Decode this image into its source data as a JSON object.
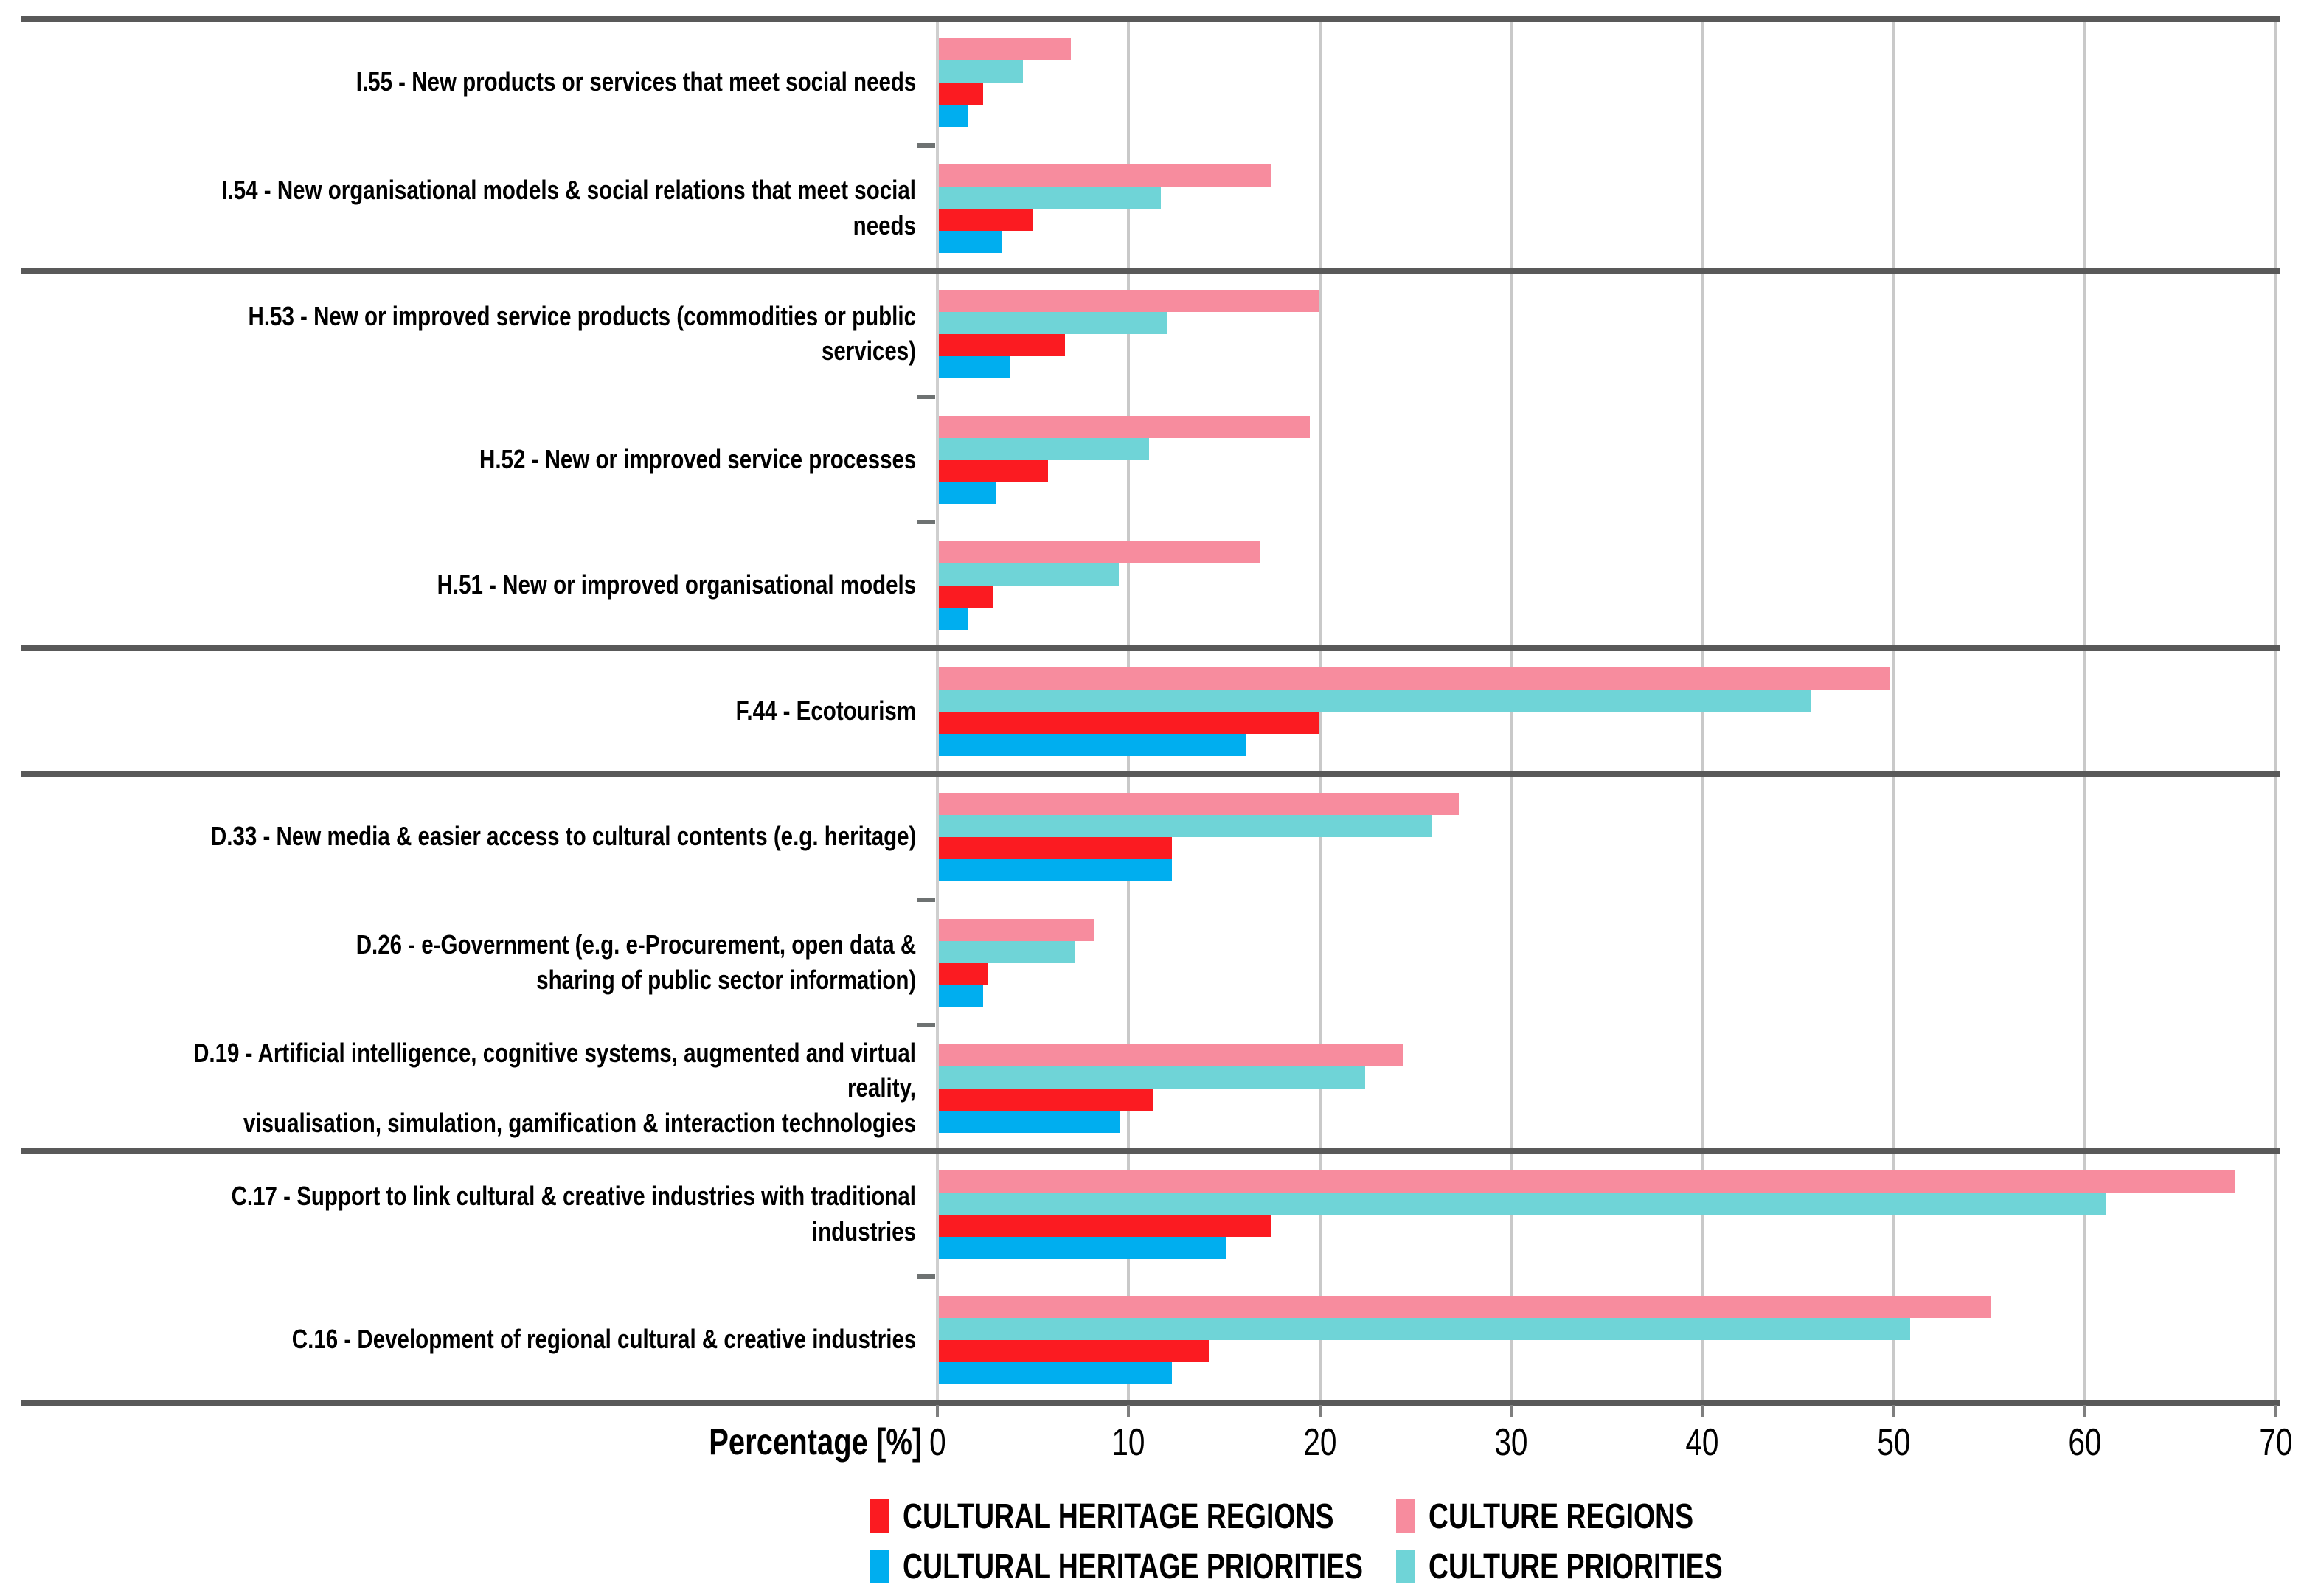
{
  "chart_data": {
    "type": "bar",
    "orientation": "horizontal",
    "title": "",
    "xlabel": "Percentage [%]",
    "xlim": [
      0,
      70
    ],
    "xticks": [
      0,
      10,
      20,
      30,
      40,
      50,
      60,
      70
    ],
    "grid": true,
    "legend_position": "bottom",
    "bar_order_top_to_bottom": [
      "culture_regions",
      "culture_priorities",
      "cultural_heritage_regions",
      "cultural_heritage_priorities"
    ],
    "series": [
      {
        "key": "culture_regions",
        "name": "CULTURE REGIONS",
        "color": "#F78C9E"
      },
      {
        "key": "culture_priorities",
        "name": "CULTURE PRIORITIES",
        "color": "#6FD4D7"
      },
      {
        "key": "cultural_heritage_regions",
        "name": "CULTURAL HERITAGE REGIONS",
        "color": "#FB1B21"
      },
      {
        "key": "cultural_heritage_priorities",
        "name": "CULTURAL HERITAGE PRIORITIES",
        "color": "#00AEEF"
      }
    ],
    "rows": [
      {
        "section": "I",
        "label": "I.55 - New products or services that meet social needs",
        "values": {
          "culture_regions": 6.9,
          "culture_priorities": 4.4,
          "cultural_heritage_regions": 2.3,
          "cultural_heritage_priorities": 1.5
        }
      },
      {
        "section": "I",
        "label": "I.54 - New organisational models & social relations that meet social needs",
        "values": {
          "culture_regions": 17.4,
          "culture_priorities": 11.6,
          "cultural_heritage_regions": 4.9,
          "cultural_heritage_priorities": 3.3
        }
      },
      {
        "section": "H",
        "label": "H.53 - New or improved service products (commodities or public services)",
        "values": {
          "culture_regions": 19.9,
          "culture_priorities": 11.9,
          "cultural_heritage_regions": 6.6,
          "cultural_heritage_priorities": 3.7
        }
      },
      {
        "section": "H",
        "label": "H.52 - New or improved service processes",
        "values": {
          "culture_regions": 19.4,
          "culture_priorities": 11.0,
          "cultural_heritage_regions": 5.7,
          "cultural_heritage_priorities": 3.0
        }
      },
      {
        "section": "H",
        "label": "H.51 - New or improved organisational models",
        "values": {
          "culture_regions": 16.8,
          "culture_priorities": 9.4,
          "cultural_heritage_regions": 2.8,
          "cultural_heritage_priorities": 1.5
        }
      },
      {
        "section": "F",
        "label": "F.44 - Ecotourism",
        "values": {
          "culture_regions": 49.7,
          "culture_priorities": 45.6,
          "cultural_heritage_regions": 19.9,
          "cultural_heritage_priorities": 16.1
        }
      },
      {
        "section": "D",
        "label": "D.33 - New media & easier access to cultural contents (e.g. heritage)",
        "values": {
          "culture_regions": 27.2,
          "culture_priorities": 25.8,
          "cultural_heritage_regions": 12.2,
          "cultural_heritage_priorities": 12.2
        }
      },
      {
        "section": "D",
        "label": "D.26 - e-Government (e.g. e-Procurement, open data &\nsharing of public sector information)",
        "values": {
          "culture_regions": 8.1,
          "culture_priorities": 7.1,
          "cultural_heritage_regions": 2.6,
          "cultural_heritage_priorities": 2.3
        }
      },
      {
        "section": "D",
        "label": "D.19 - Artificial intelligence, cognitive systems, augmented and virtual reality,\nvisualisation, simulation, gamification & interaction technologies",
        "values": {
          "culture_regions": 24.3,
          "culture_priorities": 22.3,
          "cultural_heritage_regions": 11.2,
          "cultural_heritage_priorities": 9.5
        }
      },
      {
        "section": "C",
        "label": "C.17 - Support to link cultural & creative industries with traditional industries",
        "values": {
          "culture_regions": 67.8,
          "culture_priorities": 61.0,
          "cultural_heritage_regions": 17.4,
          "cultural_heritage_priorities": 15.0
        }
      },
      {
        "section": "C",
        "label": "C.16 - Development of regional cultural & creative industries",
        "values": {
          "culture_regions": 55.0,
          "culture_priorities": 50.8,
          "cultural_heritage_regions": 14.1,
          "cultural_heritage_priorities": 12.2
        }
      }
    ],
    "legend_items": [
      {
        "label": "CULTURAL HERITAGE REGIONS",
        "color": "#FB1B21"
      },
      {
        "label": "CULTURE REGIONS",
        "color": "#F78C9E"
      },
      {
        "label": "CULTURAL HERITAGE PRIORITIES",
        "color": "#00AEEF"
      },
      {
        "label": "CULTURE PRIORITIES",
        "color": "#6FD4D7"
      }
    ],
    "colors": {
      "separator": "#595959",
      "gridline": "#c9c9c9",
      "axis": "#cfcfcf",
      "minor_tick": "#6e7272",
      "text": "#000000"
    }
  }
}
